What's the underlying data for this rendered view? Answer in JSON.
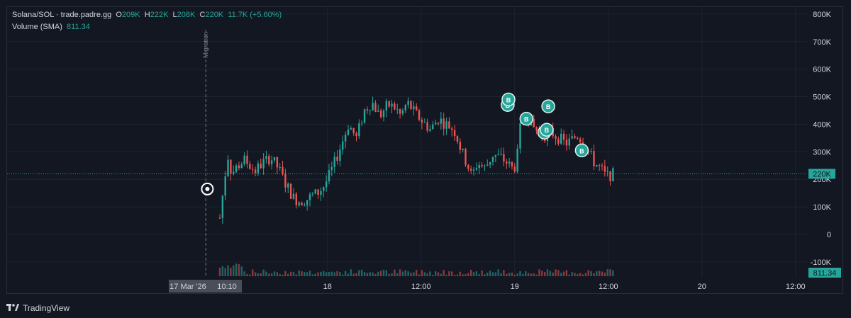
{
  "header": {
    "symbol": "Solana/SOL · trade.padre.gg",
    "o_label": "O",
    "o_value": "209K",
    "h_label": "H",
    "h_value": "222K",
    "l_label": "L",
    "l_value": "208K",
    "c_label": "C",
    "c_value": "220K",
    "change": "11.7K (+5.60%)",
    "volume_label": "Volume (SMA)",
    "volume_value": "811.34"
  },
  "price_badge": "220K",
  "volume_badge": "811.34",
  "migration_label": "Migration",
  "footer": {
    "brand": "TradingView",
    "logo_icon": "tradingview-logo-icon"
  },
  "colors": {
    "up": "#26a69a",
    "down": "#ef5350",
    "background": "#131722",
    "grid": "#1f232e",
    "badge": "#26a69a"
  },
  "chart_data": {
    "type": "candlestick",
    "y_ticks": [
      "800K",
      "700K",
      "600K",
      "500K",
      "400K",
      "300K",
      "200K",
      "100K",
      "0",
      "-100K"
    ],
    "y_tick_values": [
      800000,
      700000,
      600000,
      500000,
      400000,
      300000,
      200000,
      100000,
      0,
      -100000
    ],
    "ylim": [
      -100000,
      800000
    ],
    "x_ticks": [
      "18",
      "12:00",
      "19",
      "12:00",
      "20",
      "12:00"
    ],
    "x_tick_hours": [
      13.8,
      25.8,
      37.8,
      49.8,
      61.8,
      73.8
    ],
    "xlim_hours": [
      -16.2,
      80.2
    ],
    "crosshair_time": {
      "date": "17 Mar '26",
      "time": "10:10",
      "hours": 0
    },
    "last_price": 220000,
    "series_hours": [
      0,
      1.0,
      1.5,
      2.3,
      3.2,
      4.5,
      5.5,
      6.5,
      7.5,
      8.5,
      9.5,
      10.3,
      11.0,
      11.8,
      12.5,
      13.2,
      13.8,
      14.5,
      15.5,
      16.5,
      17.5,
      18.5,
      19.5,
      20.5,
      21.5,
      22.5,
      23.2,
      24.0,
      25.0,
      26.0,
      27.0,
      28.0,
      29.0,
      29.6,
      30.2,
      31.0,
      31.8,
      32.3,
      33.0,
      34.0,
      35.0,
      36.0,
      36.8,
      37.4,
      38.0,
      38.6,
      39.2,
      39.8,
      40.5,
      41.5,
      42.5,
      43.5,
      44.3,
      45.0,
      45.8,
      46.5,
      47.3,
      48.0,
      48.8,
      49.5,
      50.5
    ],
    "series_price": [
      60000,
      290000,
      220000,
      250000,
      270000,
      230000,
      260000,
      280000,
      240000,
      180000,
      130000,
      120000,
      125000,
      140000,
      150000,
      170000,
      200000,
      245000,
      320000,
      400000,
      350000,
      450000,
      480000,
      430000,
      470000,
      460000,
      430000,
      480000,
      440000,
      410000,
      380000,
      420000,
      400000,
      390000,
      370000,
      300000,
      250000,
      210000,
      260000,
      240000,
      290000,
      280000,
      260000,
      240000,
      250000,
      410000,
      440000,
      400000,
      380000,
      360000,
      370000,
      350000,
      330000,
      340000,
      360000,
      340000,
      300000,
      260000,
      240000,
      210000,
      220000
    ],
    "buy_markers_hours": [
      36.9,
      37.0,
      39.3,
      41.6,
      41.9,
      42.1,
      46.4
    ],
    "buy_markers_price": [
      470000,
      490000,
      420000,
      370000,
      380000,
      465000,
      305000
    ],
    "buy_marker_label": "B"
  }
}
